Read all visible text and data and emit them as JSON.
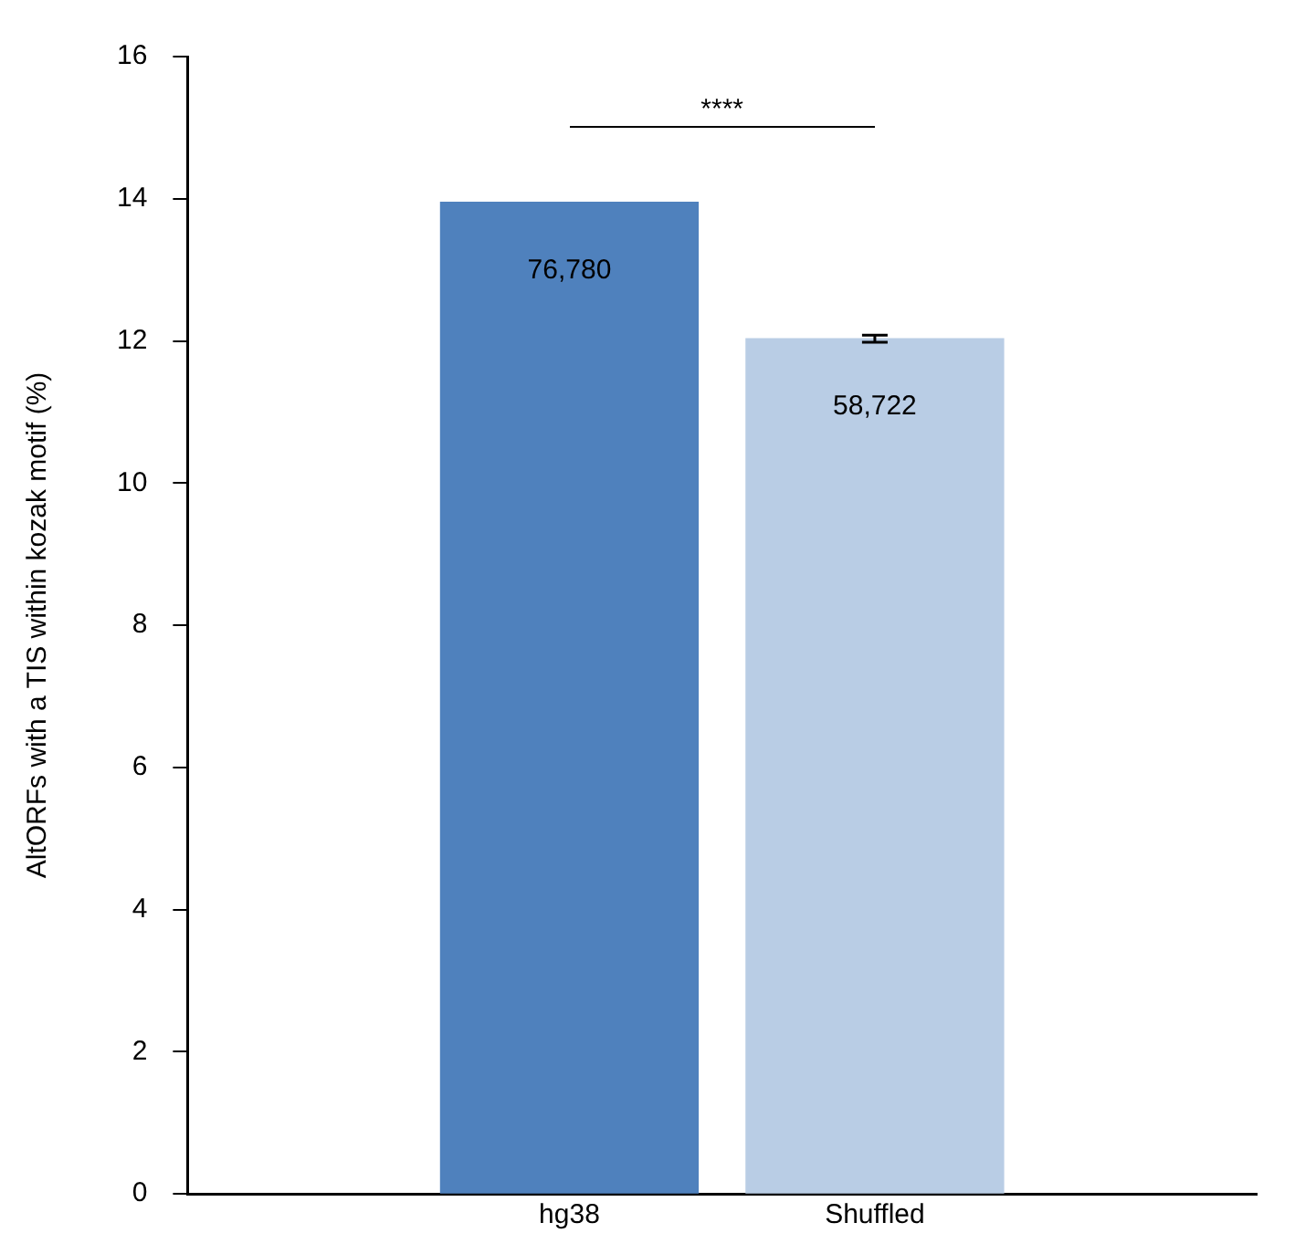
{
  "chart_data": {
    "type": "bar",
    "ylabel": "AltORFs with a TIS within kozak motif (%)",
    "categories": [
      "hg38",
      "Shuffled"
    ],
    "series": [
      {
        "colors": [
          "#4f81bd",
          "#b9cde5"
        ],
        "values": [
          13.95,
          12.03
        ],
        "errors": [
          null,
          0.05
        ]
      }
    ],
    "ylim": [
      0,
      16
    ],
    "yticks": [
      0,
      2,
      4,
      6,
      8,
      10,
      12,
      14,
      16
    ],
    "grid": false,
    "legend": false,
    "annotations": [
      "****",
      {
        "text": "76,780",
        "x": "hg38",
        "y": 13.95
      },
      {
        "text": "58,722",
        "x": "Shuffled",
        "y": 12.03
      }
    ]
  }
}
